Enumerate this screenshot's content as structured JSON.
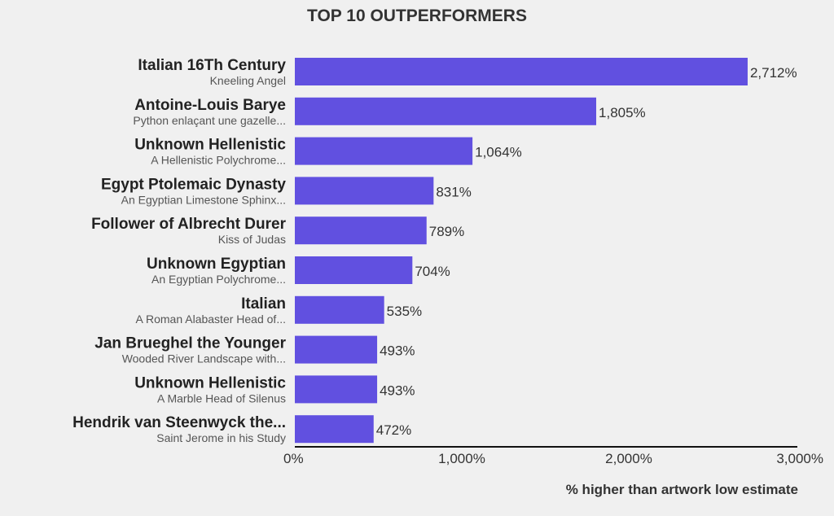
{
  "chart_data": {
    "type": "bar",
    "orientation": "horizontal",
    "title": "TOP 10 OUTPERFORMERS",
    "xlabel": "% higher than artwork low estimate",
    "ylabel": "",
    "xlim": [
      0,
      3000
    ],
    "xticks": [
      0,
      1000,
      2000,
      3000
    ],
    "xtick_labels": [
      "0%",
      "1,000%",
      "2,000%",
      "3,000%"
    ],
    "grid": false,
    "bar_color": "#6150e0",
    "categories": [
      {
        "artist": "Italian 16Th Century",
        "artwork": "Kneeling Angel"
      },
      {
        "artist": "Antoine-Louis Barye",
        "artwork": "Python enlaçant une gazelle..."
      },
      {
        "artist": "Unknown Hellenistic",
        "artwork": "A Hellenistic Polychrome..."
      },
      {
        "artist": "Egypt Ptolemaic Dynasty",
        "artwork": "An Egyptian Limestone Sphinx..."
      },
      {
        "artist": "Follower of Albrecht Durer",
        "artwork": "Kiss of Judas"
      },
      {
        "artist": "Unknown Egyptian",
        "artwork": "An Egyptian Polychrome..."
      },
      {
        "artist": "Italian",
        "artwork": "A Roman Alabaster Head of..."
      },
      {
        "artist": "Jan Brueghel the Younger",
        "artwork": "Wooded River Landscape with..."
      },
      {
        "artist": "Unknown Hellenistic",
        "artwork": "A Marble Head of Silenus"
      },
      {
        "artist": "Hendrik van Steenwyck the...",
        "artwork": "Saint Jerome in his Study"
      }
    ],
    "values": [
      2712,
      1805,
      1064,
      831,
      789,
      704,
      535,
      493,
      493,
      472
    ],
    "value_labels": [
      "2,712%",
      "1,805%",
      "1,064%",
      "831%",
      "789%",
      "704%",
      "535%",
      "493%",
      "493%",
      "472%"
    ]
  }
}
